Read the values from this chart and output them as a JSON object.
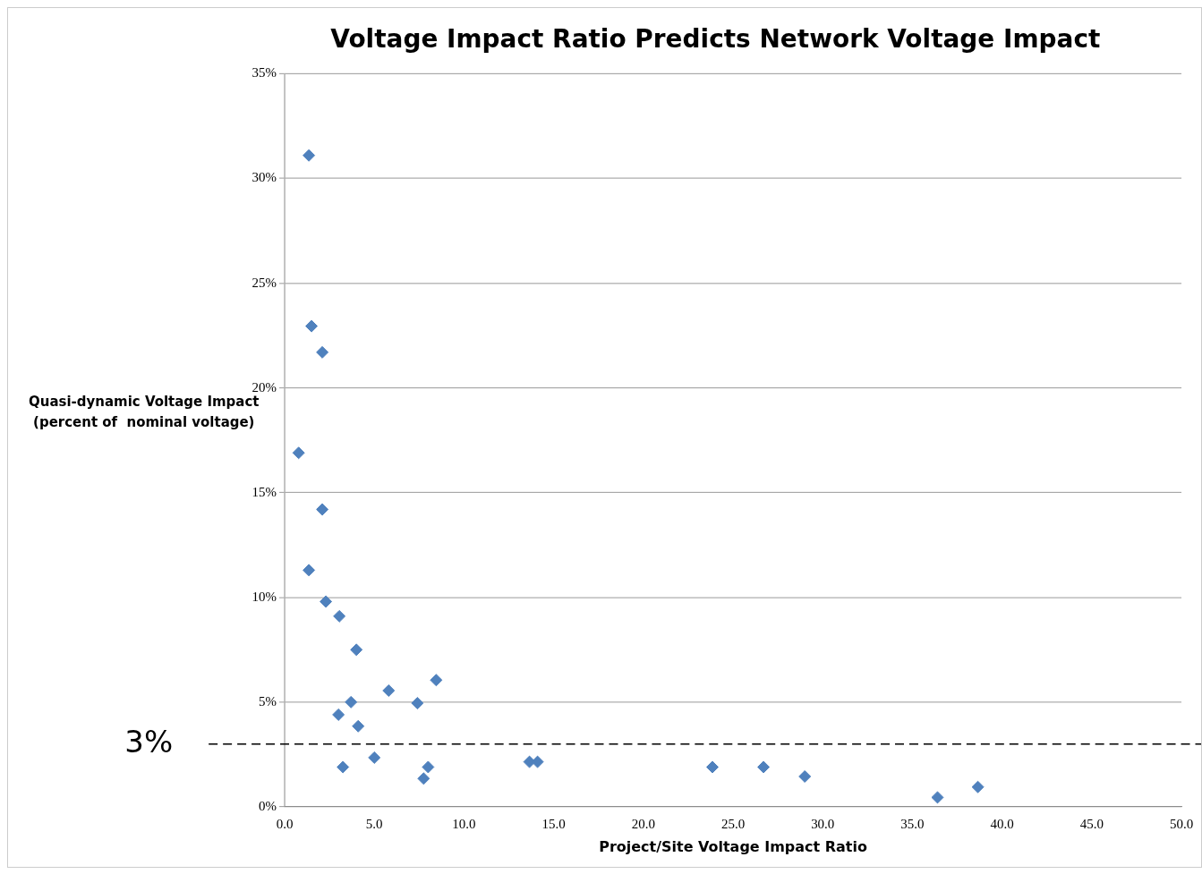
{
  "chart_data": {
    "type": "scatter",
    "title": "Voltage Impact Ratio Predicts Network Voltage Impact",
    "xlabel": "Project/Site Voltage Impact Ratio",
    "ylabel": "Quasi-dynamic Voltage Impact\n(percent of  nominal voltage)",
    "series": [
      {
        "color": "#4f81bd",
        "x": [
          1.35,
          1.5,
          2.1,
          0.78,
          2.1,
          1.35,
          2.3,
          3.05,
          4.0,
          3.7,
          3.0,
          4.1,
          3.25,
          5.0,
          5.8,
          7.4,
          8.45,
          7.75,
          8.0,
          13.65,
          14.1,
          23.85,
          26.7,
          29.0,
          36.4,
          38.65
        ],
        "values": [
          31.1,
          22.95,
          21.7,
          16.9,
          14.2,
          11.3,
          9.8,
          9.1,
          7.5,
          5.0,
          4.4,
          3.85,
          1.9,
          2.35,
          5.55,
          4.95,
          6.05,
          1.35,
          1.9,
          2.15,
          2.15,
          1.9,
          1.9,
          1.45,
          0.45,
          0.95
        ]
      }
    ],
    "xlim": [
      0,
      50
    ],
    "xticks": [
      {
        "value": 0,
        "label": "0.0"
      },
      {
        "value": 5,
        "label": "5.0"
      },
      {
        "value": 10,
        "label": "10.0"
      },
      {
        "value": 15,
        "label": "15.0"
      },
      {
        "value": 20,
        "label": "20.0"
      },
      {
        "value": 25,
        "label": "25.0"
      },
      {
        "value": 30,
        "label": "30.0"
      },
      {
        "value": 35,
        "label": "35.0"
      },
      {
        "value": 40,
        "label": "40.0"
      },
      {
        "value": 45,
        "label": "45.0"
      },
      {
        "value": 50,
        "label": "50.0"
      }
    ],
    "ylim": [
      0,
      35
    ],
    "yticks": [
      {
        "value": 0,
        "label": "0%"
      },
      {
        "value": 5,
        "label": "5%"
      },
      {
        "value": 10,
        "label": "10%"
      },
      {
        "value": 15,
        "label": "15%"
      },
      {
        "value": 20,
        "label": "20%"
      },
      {
        "value": 25,
        "label": "25%"
      },
      {
        "value": 30,
        "label": "30%"
      },
      {
        "value": 35,
        "label": "35%"
      }
    ],
    "ref_lines": [
      {
        "axis": "y",
        "value": 3,
        "label": "3%",
        "color": "#000000",
        "line_style": "dashed"
      }
    ],
    "grid": "y",
    "marker": "diamond",
    "legend": false
  }
}
